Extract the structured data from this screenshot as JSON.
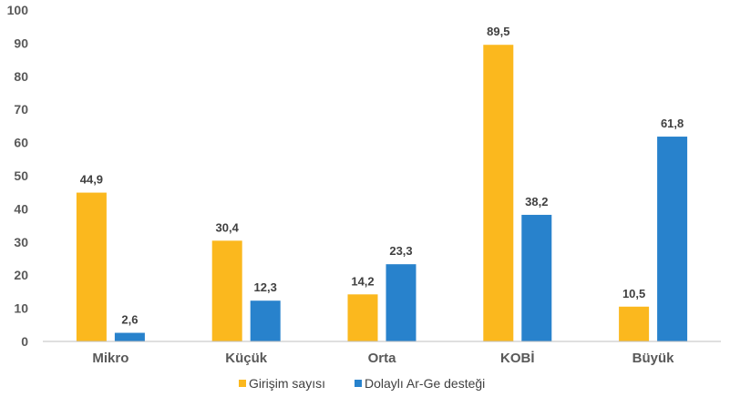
{
  "chart_data": {
    "type": "bar",
    "categories": [
      "Mikro",
      "Küçük",
      "Orta",
      "KOBİ",
      "Büyük"
    ],
    "series": [
      {
        "name": "Girişim sayısı",
        "values": [
          44.9,
          30.4,
          14.2,
          89.5,
          10.5
        ],
        "labels": [
          "44,9",
          "30,4",
          "14,2",
          "89,5",
          "10,5"
        ],
        "color": "#FBB81E"
      },
      {
        "name": "Dolaylı Ar-Ge desteği",
        "values": [
          2.6,
          12.3,
          23.3,
          38.2,
          61.8
        ],
        "labels": [
          "2,6",
          "12,3",
          "23,3",
          "38,2",
          "61,8"
        ],
        "color": "#2882CC"
      }
    ],
    "yticks": [
      0,
      10,
      20,
      30,
      40,
      50,
      60,
      70,
      80,
      90,
      100
    ],
    "ylim": [
      0,
      100
    ],
    "grid": false,
    "legend_position": "bottom-center",
    "axis_color": "#BFBFBF"
  }
}
